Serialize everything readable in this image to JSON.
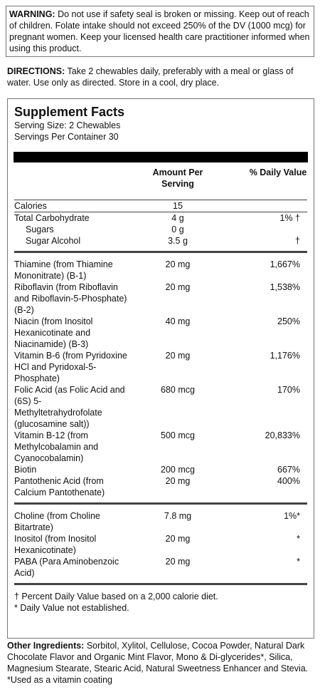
{
  "warning": {
    "label": "WARNING:",
    "text": "Do not use if safety seal is broken or missing. Keep out of reach of children. Folate intake should not exceed 250% of the DV (1000 mcg) for pregnant women. Keep your licensed health care practitioner informed when using this product."
  },
  "directions": {
    "label": "DIRECTIONS:",
    "text": "Take 2 chewables daily, preferably with a meal or glass of water. Use only as directed.  Store in a cool, dry place."
  },
  "facts": {
    "title": "Supplement Facts",
    "serving_size": "Serving Size: 2 Chewables",
    "servings": "Servings Per Container 30",
    "headers": [
      "Amount Per Serving",
      "% Daily Value"
    ],
    "calories": {
      "name": "Calories",
      "amount": "15"
    },
    "carbs": [
      {
        "name": "Total Carbohydrate",
        "amount": "4 g",
        "dv": "1% †"
      },
      {
        "name": "Sugars",
        "amount": "0 g"
      },
      {
        "name": "Sugar Alcohol",
        "amount": "3.5 g",
        "dv": "†"
      }
    ],
    "vitamins": [
      {
        "name": "Thiamine (from Thiamine Mononitrate) (B-1)",
        "amount": "20 mg",
        "dv": "1,667%"
      },
      {
        "name": "Riboflavin (from Riboflavin and Riboflavin-5-Phosphate) (B-2)",
        "amount": "20 mg",
        "dv": "1,538%"
      },
      {
        "name": "Niacin (from Inositol Hexanicotinate and Niacinamide) (B-3)",
        "amount": "40 mg",
        "dv": "250%"
      },
      {
        "name": "Vitamin B-6 (from Pyridoxine HCl and Pyridoxal-5-Phosphate)",
        "amount": "20 mg",
        "dv": "1,176%"
      },
      {
        "name": "Folic Acid (as Folic Acid and (6S) 5-Methyltetrahydrofolate (glucosamine salt))",
        "amount": "680 mcg",
        "dv": "170%"
      },
      {
        "name": "Vitamin B-12 (from Methylcobalamin and Cyanocobalamin)",
        "amount": "500 mcg",
        "dv": "20,833%"
      },
      {
        "name": "Biotin",
        "amount": "200 mcg",
        "dv": "667%"
      },
      {
        "name": "Pantothenic Acid (from Calcium Pantothenate)",
        "amount": "20 mg",
        "dv": "400%"
      }
    ],
    "others": [
      {
        "name": "Choline (from Choline Bitartrate)",
        "amount": "7.8 mg",
        "dv": "1%*"
      },
      {
        "name": "Inositol (from Inositol Hexanicotinate)",
        "amount": "20 mg",
        "dv": "*"
      },
      {
        "name": "PABA (Para Aminobenzoic Acid)",
        "amount": "20 mg",
        "dv": "*"
      }
    ],
    "footnotes": [
      "† Percent Daily Value based on a 2,000 calorie diet.",
      "* Daily Value not established."
    ]
  },
  "other_ingredients": {
    "label": "Other Ingredients:",
    "text": "Sorbitol, Xylitol, Cellulose, Cocoa Powder, Natural Dark Chocolate Flavor and Organic Mint Flavor, Mono & Di-glycerides*, Silica, Magnesium Stearate, Stearic Acid, Natural Sweetness Enhancer and Stevia. *Used as a vitamin coating"
  }
}
